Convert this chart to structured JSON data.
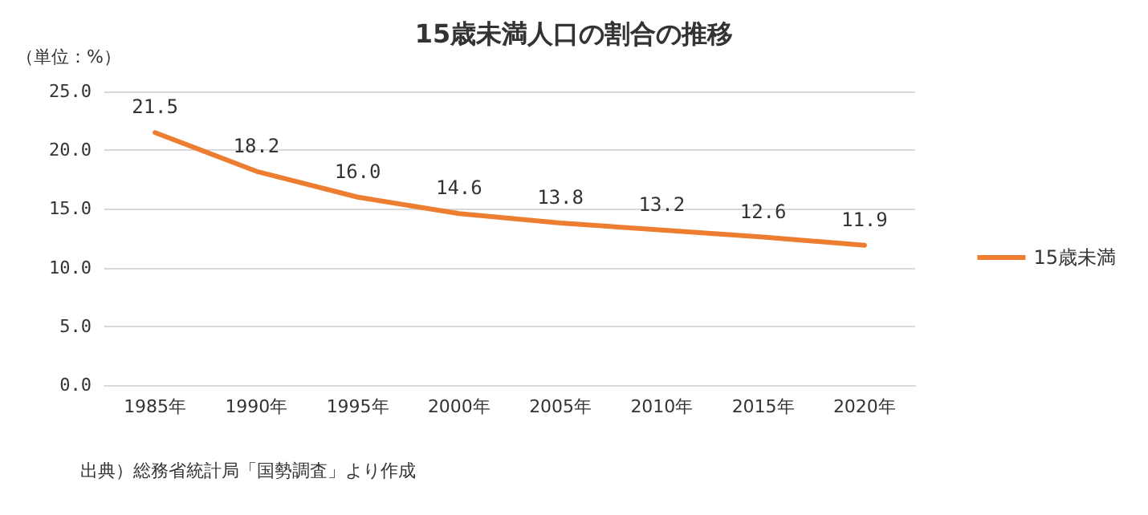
{
  "chart_data": {
    "type": "line",
    "title": "15歳未満人口の割合の推移",
    "ylabel": "（単位：%）",
    "categories": [
      "1985年",
      "1990年",
      "1995年",
      "2000年",
      "2005年",
      "2010年",
      "2015年",
      "2020年"
    ],
    "series": [
      {
        "name": "15歳未満",
        "color": "#ed7d31",
        "values": [
          21.5,
          18.2,
          16.0,
          14.6,
          13.8,
          13.2,
          12.6,
          11.9
        ]
      }
    ],
    "value_labels": [
      "21.5",
      "18.2",
      "16.0",
      "14.6",
      "13.8",
      "13.2",
      "12.6",
      "11.9"
    ],
    "ylim": [
      0,
      25
    ],
    "yticks": [
      {
        "value": 0,
        "label": "0.0"
      },
      {
        "value": 5,
        "label": "5.0"
      },
      {
        "value": 10,
        "label": "10.0"
      },
      {
        "value": 15,
        "label": "15.0"
      },
      {
        "value": 20,
        "label": "20.0"
      },
      {
        "value": 25,
        "label": "25.0"
      }
    ],
    "grid": "y",
    "legend": "right",
    "marker": "none",
    "line_style": "solid",
    "annotations": [
      "出典）総務省統計局「国勢調査」より作成"
    ]
  }
}
